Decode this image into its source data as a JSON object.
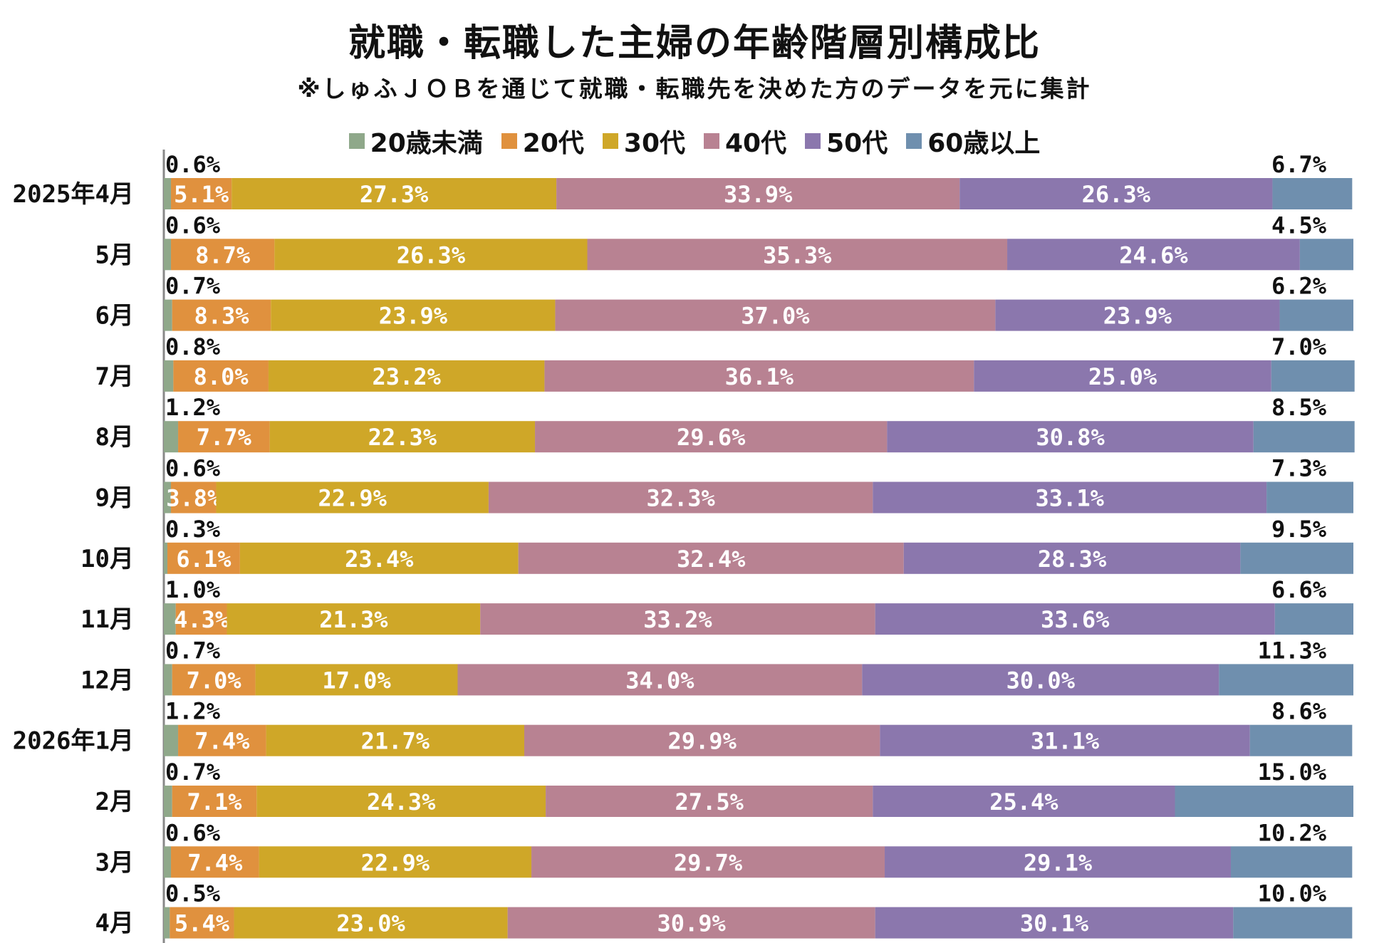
{
  "title": "就職・転職した主婦の年齢階層別構成比",
  "subtitle": "※しゅふＪＯＢを通じて就職・転職先を決めた方のデータを元に集計",
  "chart_data": {
    "type": "bar",
    "orientation": "horizontal",
    "stacked": true,
    "value_suffix": "%",
    "categories": [
      "2025年4月",
      "5月",
      "6月",
      "7月",
      "8月",
      "9月",
      "10月",
      "11月",
      "12月",
      "2026年1月",
      "2月",
      "3月",
      "4月"
    ],
    "series": [
      {
        "name": "20歳未満",
        "color": "#8fa88a",
        "values": [
          0.6,
          0.6,
          0.7,
          0.8,
          1.2,
          0.6,
          0.3,
          1.0,
          0.7,
          1.2,
          0.7,
          0.6,
          0.5
        ]
      },
      {
        "name": "20代",
        "color": "#e0913e",
        "values": [
          5.1,
          8.7,
          8.3,
          8.0,
          7.7,
          3.8,
          6.1,
          4.3,
          7.0,
          7.4,
          7.1,
          7.4,
          5.4
        ]
      },
      {
        "name": "30代",
        "color": "#cfa728",
        "values": [
          27.3,
          26.3,
          23.9,
          23.2,
          22.3,
          22.9,
          23.4,
          21.3,
          17.0,
          21.7,
          24.3,
          22.9,
          23.0
        ]
      },
      {
        "name": "40代",
        "color": "#b88292",
        "values": [
          33.9,
          35.3,
          37.0,
          36.1,
          29.6,
          32.3,
          32.4,
          33.2,
          34.0,
          29.9,
          27.5,
          29.7,
          30.9
        ]
      },
      {
        "name": "50代",
        "color": "#8b77ad",
        "values": [
          26.3,
          24.6,
          23.9,
          25.0,
          30.8,
          33.1,
          28.3,
          33.6,
          30.0,
          31.1,
          25.4,
          29.1,
          30.1
        ]
      },
      {
        "name": "60歳以上",
        "color": "#6f8fae",
        "values": [
          6.7,
          4.5,
          6.2,
          7.0,
          8.5,
          7.3,
          9.5,
          6.6,
          11.3,
          8.6,
          15.0,
          10.2,
          10.0
        ]
      }
    ],
    "xlim": [
      0,
      100
    ],
    "legend_position": "top",
    "grid": false
  }
}
